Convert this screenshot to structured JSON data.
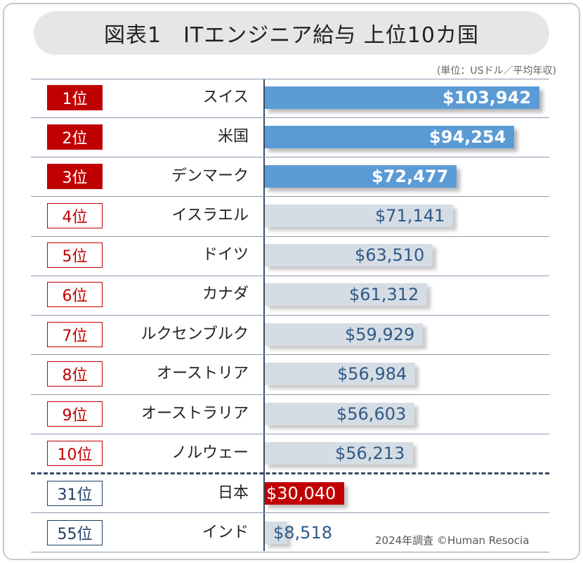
{
  "header": {
    "title": "図表1　ITエンジニア給与 上位10カ国",
    "unit_note": "(単位：USドル／平均年収)"
  },
  "footer": {
    "source": "2024年調査 ©Human Resocia"
  },
  "colors": {
    "top3_bar": "#5b9bd5",
    "other_bar": "#d6dce4",
    "japan_bar": "#c00000",
    "rank_red": "#c00000",
    "rank_navy": "#1f3f66",
    "value_blue": "#2e5a88"
  },
  "chart_data": {
    "type": "bar",
    "orientation": "horizontal",
    "title": "図表1　ITエンジニア給与 上位10カ国",
    "xlabel": "",
    "ylabel": "",
    "unit": "USドル／平均年収",
    "xlim": [
      0,
      103942
    ],
    "rows": [
      {
        "rank": "1位",
        "country": "スイス",
        "value": 103942,
        "label": "$103,942",
        "group": "top"
      },
      {
        "rank": "2位",
        "country": "米国",
        "value": 94254,
        "label": "$94,254",
        "group": "top"
      },
      {
        "rank": "3位",
        "country": "デンマーク",
        "value": 72477,
        "label": "$72,477",
        "group": "top"
      },
      {
        "rank": "4位",
        "country": "イスラエル",
        "value": 71141,
        "label": "$71,141",
        "group": "mid"
      },
      {
        "rank": "5位",
        "country": "ドイツ",
        "value": 63510,
        "label": "$63,510",
        "group": "mid"
      },
      {
        "rank": "6位",
        "country": "カナダ",
        "value": 61312,
        "label": "$61,312",
        "group": "mid"
      },
      {
        "rank": "7位",
        "country": "ルクセンブルク",
        "value": 59929,
        "label": "$59,929",
        "group": "mid"
      },
      {
        "rank": "8位",
        "country": "オーストリア",
        "value": 56984,
        "label": "$56,984",
        "group": "mid"
      },
      {
        "rank": "9位",
        "country": "オーストラリア",
        "value": 56603,
        "label": "$56,603",
        "group": "mid"
      },
      {
        "rank": "10位",
        "country": "ノルウェー",
        "value": 56213,
        "label": "$56,213",
        "group": "mid"
      },
      {
        "rank": "31位",
        "country": "日本",
        "value": 30040,
        "label": "$30,040",
        "group": "japan"
      },
      {
        "rank": "55位",
        "country": "インド",
        "value": 8518,
        "label": "$8,518",
        "group": "india"
      }
    ]
  }
}
